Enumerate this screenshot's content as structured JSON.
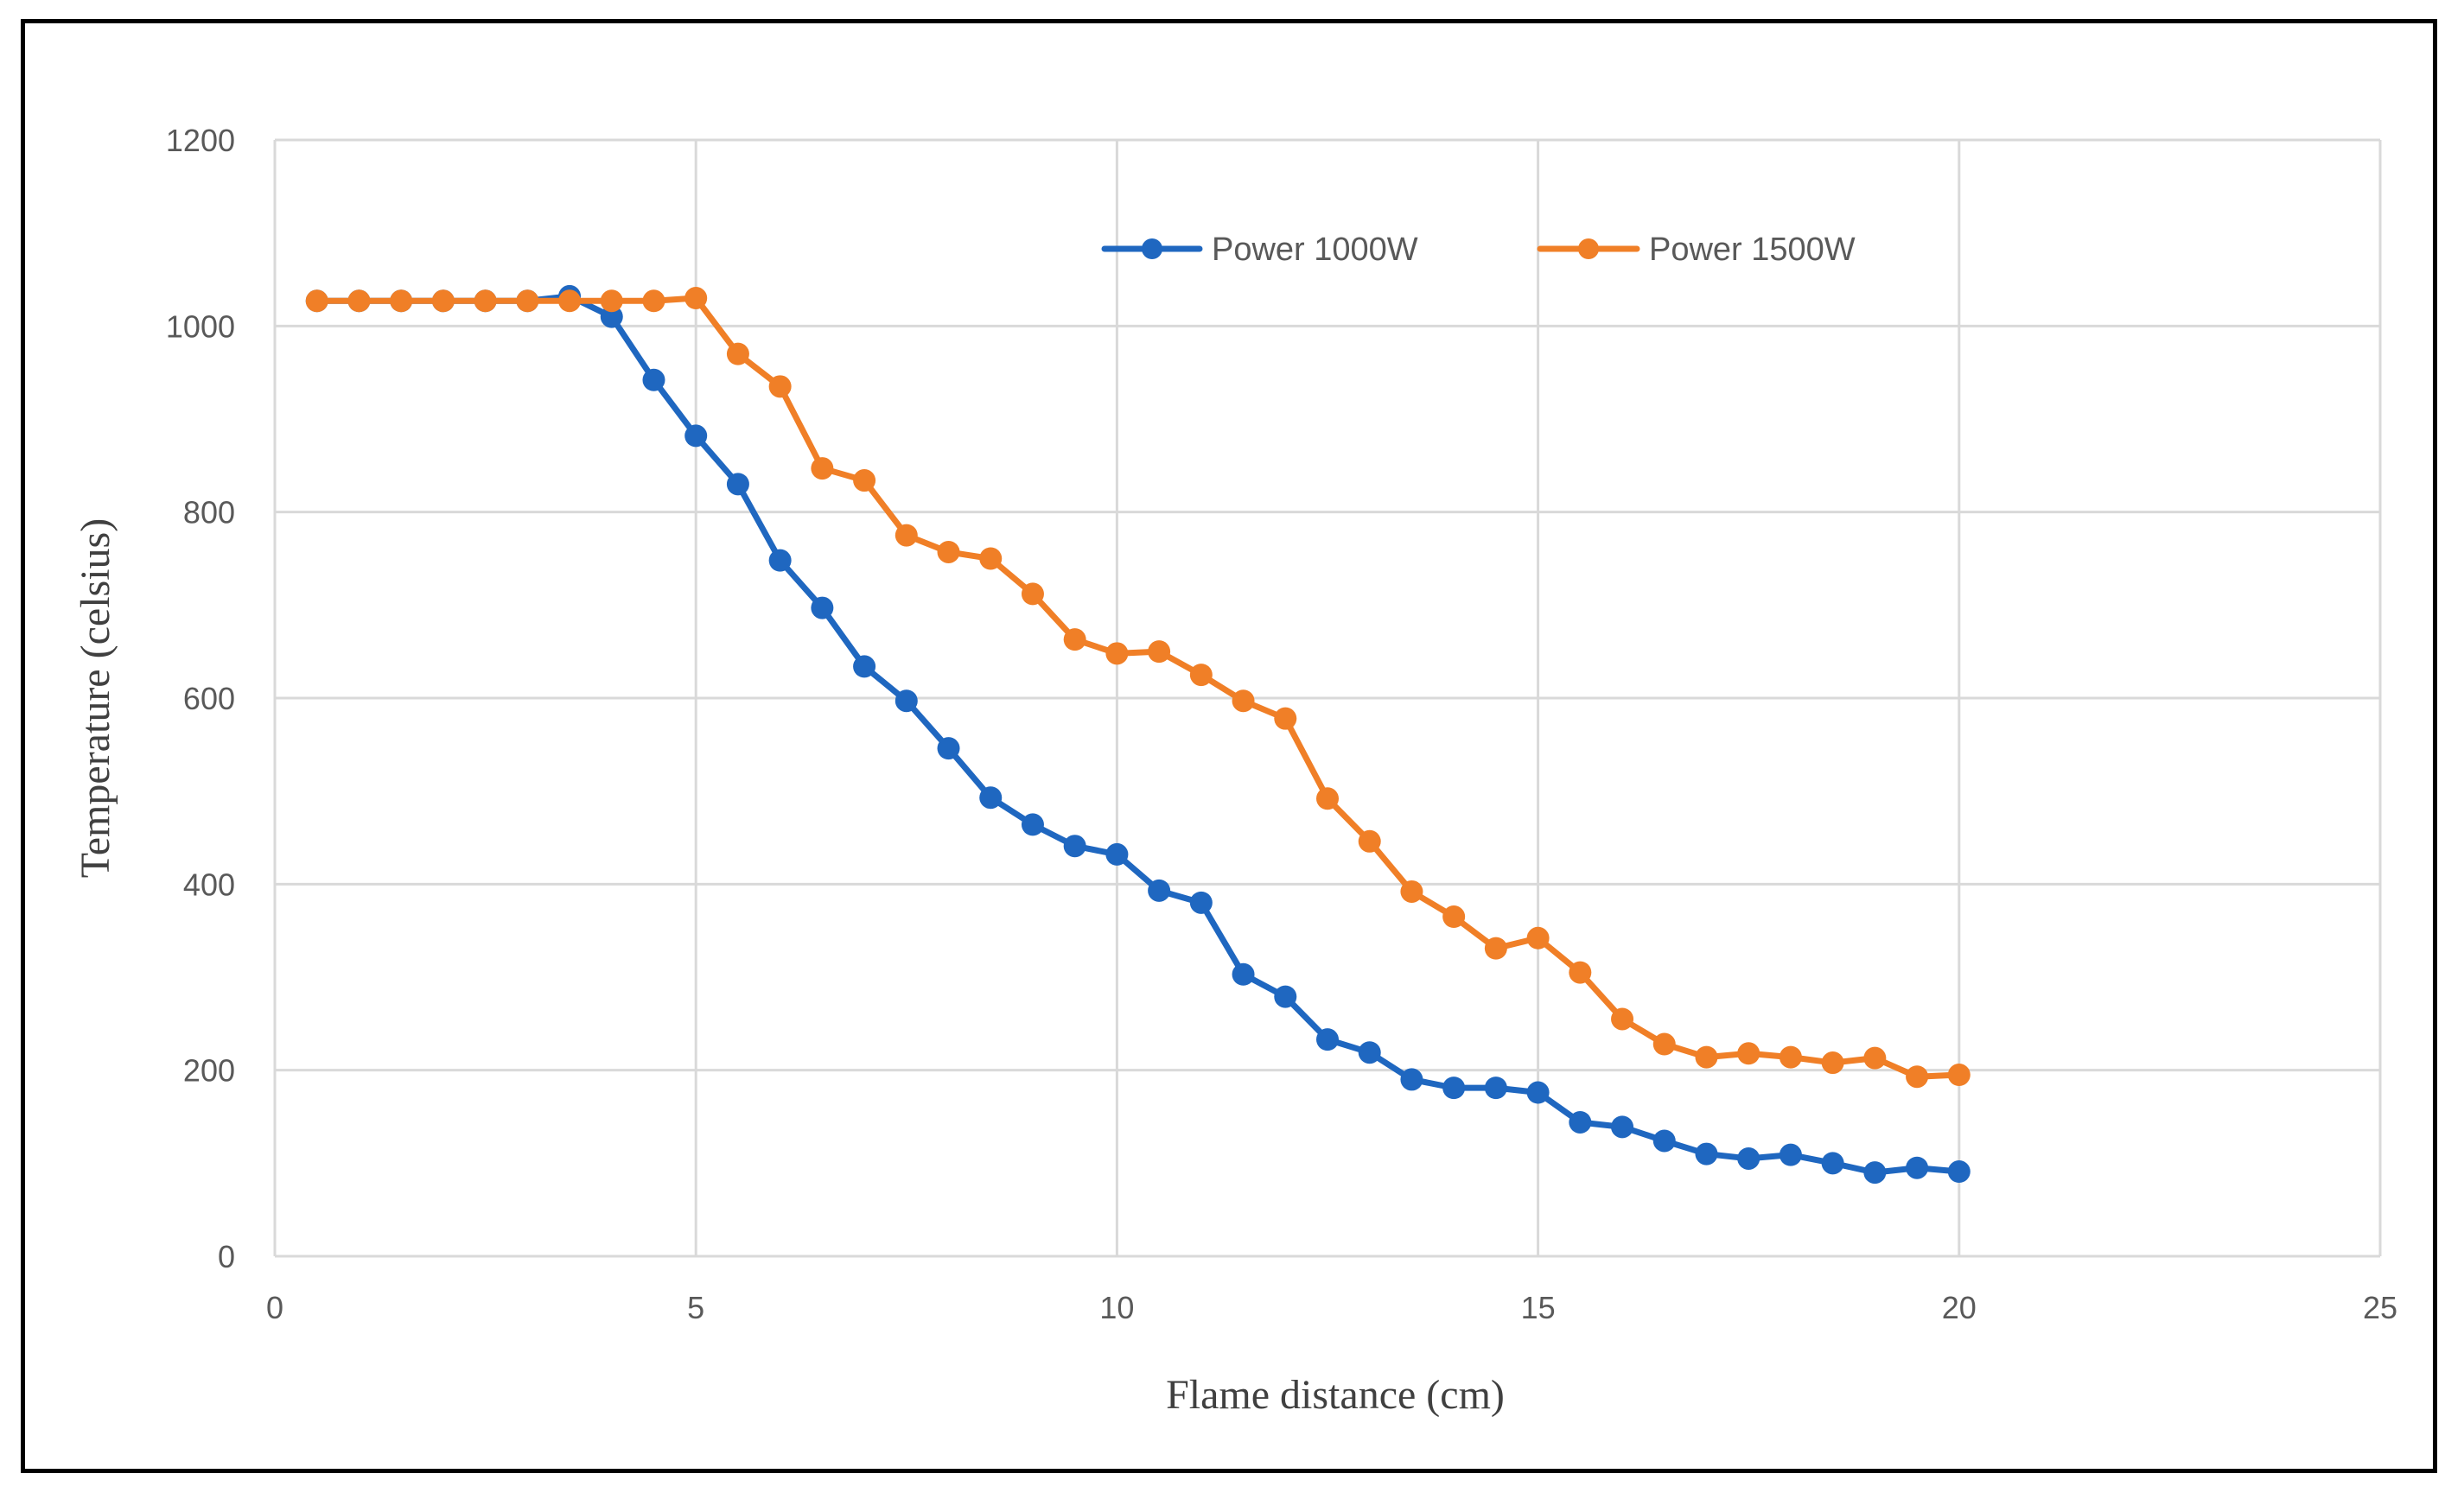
{
  "chart_data": {
    "type": "line",
    "title": "",
    "xlabel": "Flame distance (cm)",
    "ylabel": "Temperature (celsius)",
    "xlim": [
      0,
      25
    ],
    "ylim": [
      0,
      1200
    ],
    "xticks": [
      0,
      5,
      10,
      15,
      20,
      25
    ],
    "yticks": [
      0,
      200,
      400,
      600,
      800,
      1000,
      1200
    ],
    "grid": true,
    "legend_position": "top-center",
    "x": [
      0.5,
      1,
      1.5,
      2,
      2.5,
      3,
      3.5,
      4,
      4.5,
      5,
      5.5,
      6,
      6.5,
      7,
      7.5,
      8,
      8.5,
      9,
      9.5,
      10,
      10.5,
      11,
      11.5,
      12,
      12.5,
      13,
      13.5,
      14,
      14.5,
      15,
      15.5,
      16,
      16.5,
      17,
      17.5,
      18,
      18.5,
      19,
      19.5,
      20
    ],
    "series": [
      {
        "name": "Power 1000W",
        "color": "#1f67c0",
        "values": [
          1027,
          1027,
          1027,
          1027,
          1027,
          1027,
          1032,
          1010,
          942,
          882,
          830,
          748,
          697,
          634,
          597,
          546,
          493,
          464,
          441,
          432,
          393,
          380,
          303,
          279,
          233,
          219,
          190,
          181,
          181,
          176,
          144,
          139,
          124,
          110,
          105,
          109,
          100,
          90,
          95,
          91
        ]
      },
      {
        "name": "Power 1500W",
        "color": "#f07f27",
        "values": [
          1027,
          1027,
          1027,
          1027,
          1027,
          1027,
          1027,
          1027,
          1027,
          1030,
          970,
          935,
          847,
          834,
          775,
          757,
          750,
          712,
          663,
          648,
          650,
          625,
          597,
          578,
          492,
          446,
          392,
          365,
          331,
          342,
          305,
          255,
          228,
          214,
          218,
          214,
          208,
          213,
          193,
          195
        ]
      }
    ]
  }
}
